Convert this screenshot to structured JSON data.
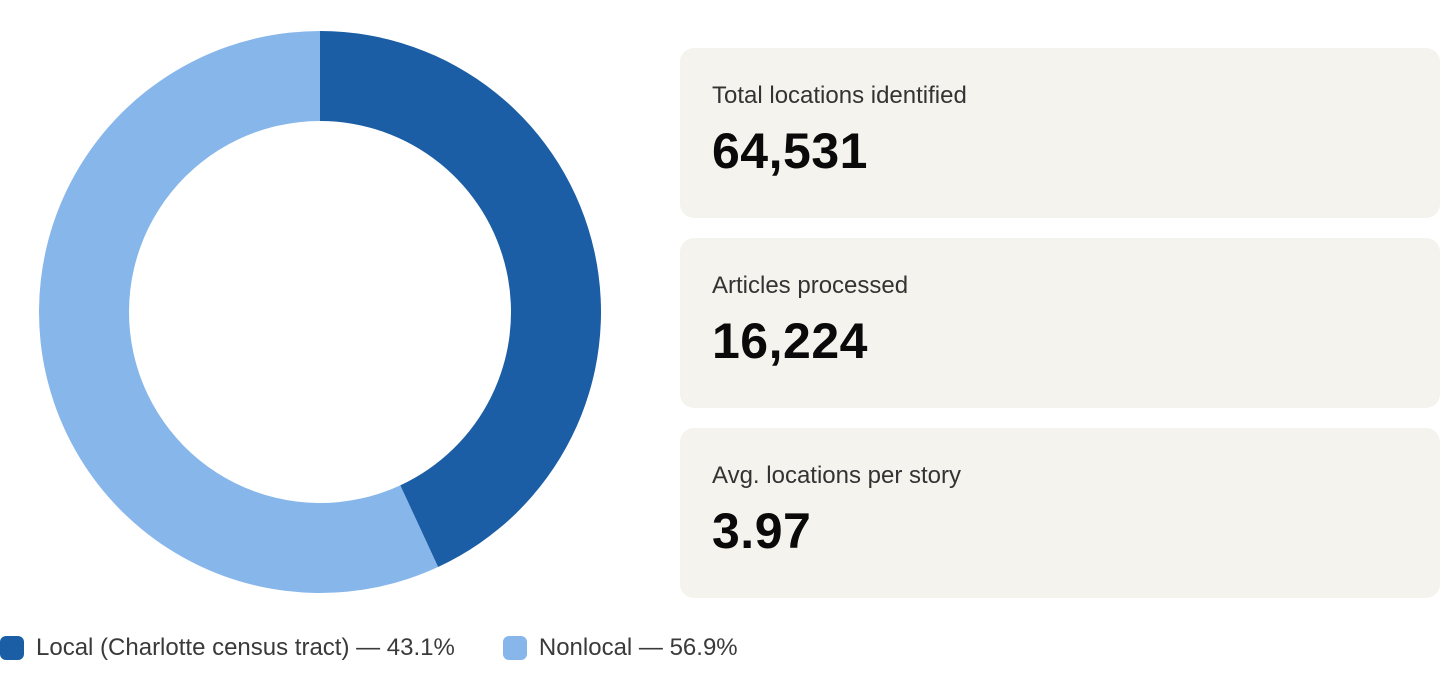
{
  "chart_data": {
    "type": "pie",
    "subtype": "donut",
    "title": "",
    "slices": [
      {
        "label": "Local (Charlotte census tract)",
        "value": 43.1,
        "display": "Local (Charlotte census tract) — 43.1%",
        "color": "#1b5ea6"
      },
      {
        "label": "Nonlocal",
        "value": 56.9,
        "display": "Nonlocal — 56.9%",
        "color": "#86b6ea"
      }
    ],
    "legend_position": "bottom-left"
  },
  "stats": [
    {
      "label": "Total locations identified",
      "value": "64,531"
    },
    {
      "label": "Articles processed",
      "value": "16,224"
    },
    {
      "label": "Avg. locations per story",
      "value": "3.97"
    }
  ]
}
